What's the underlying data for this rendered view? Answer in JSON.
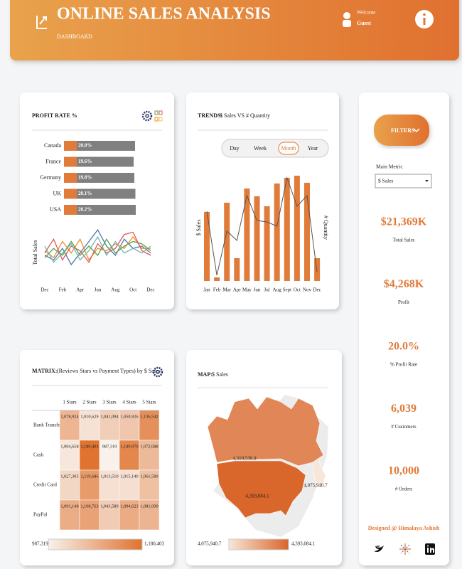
{
  "header": {
    "title": "ONLINE SALES ANALYSIS",
    "subtitle": "DASHBOARD",
    "welcome": "Welcome",
    "user": "Guest"
  },
  "chart_data": [
    {
      "type": "hbar",
      "title": "PROFIT RATE %",
      "categories": [
        "Canada",
        "France",
        "Germany",
        "UK",
        "USA"
      ],
      "values": [
        20.0,
        19.6,
        19.8,
        20.1,
        20.2
      ],
      "value_labels": [
        "20.0%",
        "19.6%",
        "19.8%",
        "20.1%",
        "20.2%"
      ],
      "xlim": [
        0,
        21
      ],
      "color": "#808080",
      "label_color": "#e07b3a"
    },
    {
      "type": "line",
      "y_label": "Total Sales",
      "categories": [
        "Dec",
        null,
        "Feb",
        null,
        "Apr",
        null,
        "Jun",
        null,
        "Aug",
        null,
        "Oct",
        null,
        "Dec"
      ],
      "ylim": [
        0,
        100
      ],
      "series": [
        {
          "color": "#4e79a7",
          "values": [
            40,
            30,
            55,
            20,
            45,
            70,
            95,
            60,
            40,
            75,
            55,
            60,
            45
          ]
        },
        {
          "color": "#f28e2b",
          "values": [
            50,
            35,
            70,
            45,
            75,
            30,
            55,
            50,
            65,
            55,
            80,
            55,
            55
          ]
        },
        {
          "color": "#e15759",
          "values": [
            45,
            75,
            30,
            60,
            50,
            25,
            65,
            45,
            55,
            85,
            90,
            50,
            40
          ]
        },
        {
          "color": "#76b7b2",
          "values": [
            60,
            25,
            45,
            65,
            30,
            50,
            80,
            40,
            70,
            45,
            55,
            45,
            60
          ]
        },
        {
          "color": "#59a14f",
          "values": [
            35,
            55,
            40,
            70,
            40,
            60,
            40,
            75,
            45,
            60,
            70,
            65,
            50
          ]
        }
      ]
    },
    {
      "type": "combo",
      "title": "TRENDS:",
      "subtitle": "$ Sales VS # Quantity",
      "periods": [
        "Day",
        "Week",
        "Month",
        "Year"
      ],
      "selected_period_index": 2,
      "y_label": "$ Sales",
      "y2_label": "# Quantity",
      "categories": [
        "Jan",
        "Feb",
        "Mar",
        "Apr",
        "May",
        "Jun",
        "Jul",
        "Aug",
        "Sept",
        "Oct",
        "Nov",
        "Dec"
      ],
      "ylim": [
        0,
        150
      ],
      "y2lim": [
        0,
        150
      ],
      "series": [
        {
          "type": "bar",
          "color": "#e07b3a",
          "values": [
            97,
            5,
            110,
            32,
            130,
            119,
            105,
            137,
            145,
            148,
            138,
            32
          ]
        },
        {
          "type": "line",
          "axis": "y2",
          "color": "#555555",
          "values": [
            98,
            8,
            70,
            57,
            120,
            85,
            83,
            77,
            145,
            105,
            120,
            12
          ]
        }
      ]
    },
    {
      "type": "heatmap",
      "title": "MATRIX:",
      "subtitle": "(Reviews Stars vs Payment Types) by $ Sales",
      "columns": [
        "1 Stars",
        "2 Stars",
        "3 Stars",
        "4 Stars",
        "5 Stars"
      ],
      "rows": [
        "Bank Transfer",
        "Cash",
        "Credit Card",
        "PayPal"
      ],
      "values": [
        [
          1078924,
          1010629,
          1041094,
          1050926,
          1136542
        ],
        [
          1004658,
          1180403,
          987319,
          1149970,
          1072088
        ],
        [
          1027305,
          1119686,
          1013510,
          1015140,
          1061589
        ],
        [
          1091148,
          1108763,
          1043589,
          1094623,
          1081090
        ]
      ],
      "value_labels": [
        [
          "1,078,924",
          "1,010,629",
          "1,041,094",
          "1,050,926",
          "1,136,542"
        ],
        [
          "1,004,658",
          "1,180,403",
          "987,319",
          "1,149,970",
          "1,072,088"
        ],
        [
          "1,027,305",
          "1,119,686",
          "1,013,510",
          "1,015,140",
          "1,061,589"
        ],
        [
          "1,091,148",
          "1,108,763",
          "1,043,589",
          "1,094,623",
          "1,081,090"
        ]
      ],
      "legend_range": [
        {
          "value": 987319,
          "label": "987,319"
        },
        {
          "value": 1180403,
          "label": "1,180,403"
        }
      ],
      "colors": [
        "#f8f1ec",
        "#e0732f"
      ]
    },
    {
      "type": "map",
      "title": "MAP:",
      "subtitle": "$ Sales",
      "values": [
        4310536.9,
        4393084.1,
        4075940.7
      ],
      "value_labels": [
        "4,310,536.9",
        "4,393,084.1",
        "4,075,940.7"
      ],
      "legend_range": [
        {
          "value": 4075940.7,
          "label": "4,075,940.7"
        },
        {
          "value": 4393084.1,
          "label": "4,393,084.1"
        }
      ],
      "colors": [
        "#f8e6d8",
        "#d9662a"
      ]
    }
  ],
  "sidebar": {
    "filters": "FILTERS",
    "metric_label": "Main Metric",
    "metric_value": "$ Sales",
    "kpis": [
      {
        "value": "$21,369K",
        "label": "Total Sales"
      },
      {
        "value": "$4,268K",
        "label": "Profit"
      },
      {
        "value": "20.0%",
        "label": "% Profit Rate"
      },
      {
        "value": "6,039",
        "label": "# Customers"
      },
      {
        "value": "10,000",
        "label": "# Orders"
      }
    ],
    "credit": "Designed @ Himalaya Ashish"
  }
}
